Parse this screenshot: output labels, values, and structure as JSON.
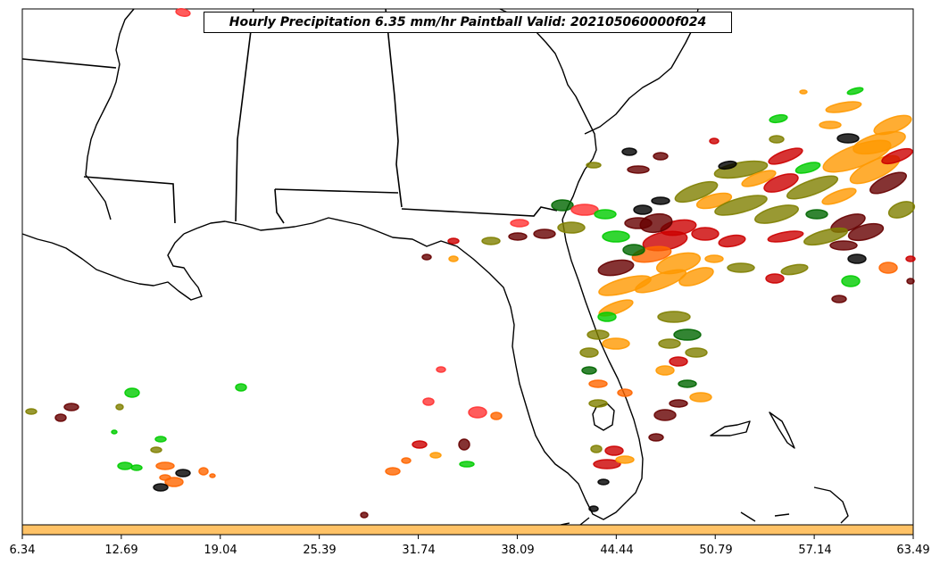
{
  "title": "Hourly Precipitation 6.35 mm/hr Paintball Valid: 202105060000f024",
  "colorbar": {
    "color": "#ffc266",
    "tick_labels": [
      "6.34",
      "12.69",
      "19.04",
      "25.39",
      "31.74",
      "38.09",
      "44.44",
      "50.79",
      "57.14",
      "63.49"
    ]
  },
  "map": {
    "region": "Southeastern United States",
    "land_color": "#ffffff",
    "border_color": "#000000"
  },
  "paintball_colors": [
    "#00cc00",
    "#cc0000",
    "#ff3333",
    "#ff6600",
    "#ff9900",
    "#808000",
    "#006600",
    "#660000",
    "#000000"
  ]
}
